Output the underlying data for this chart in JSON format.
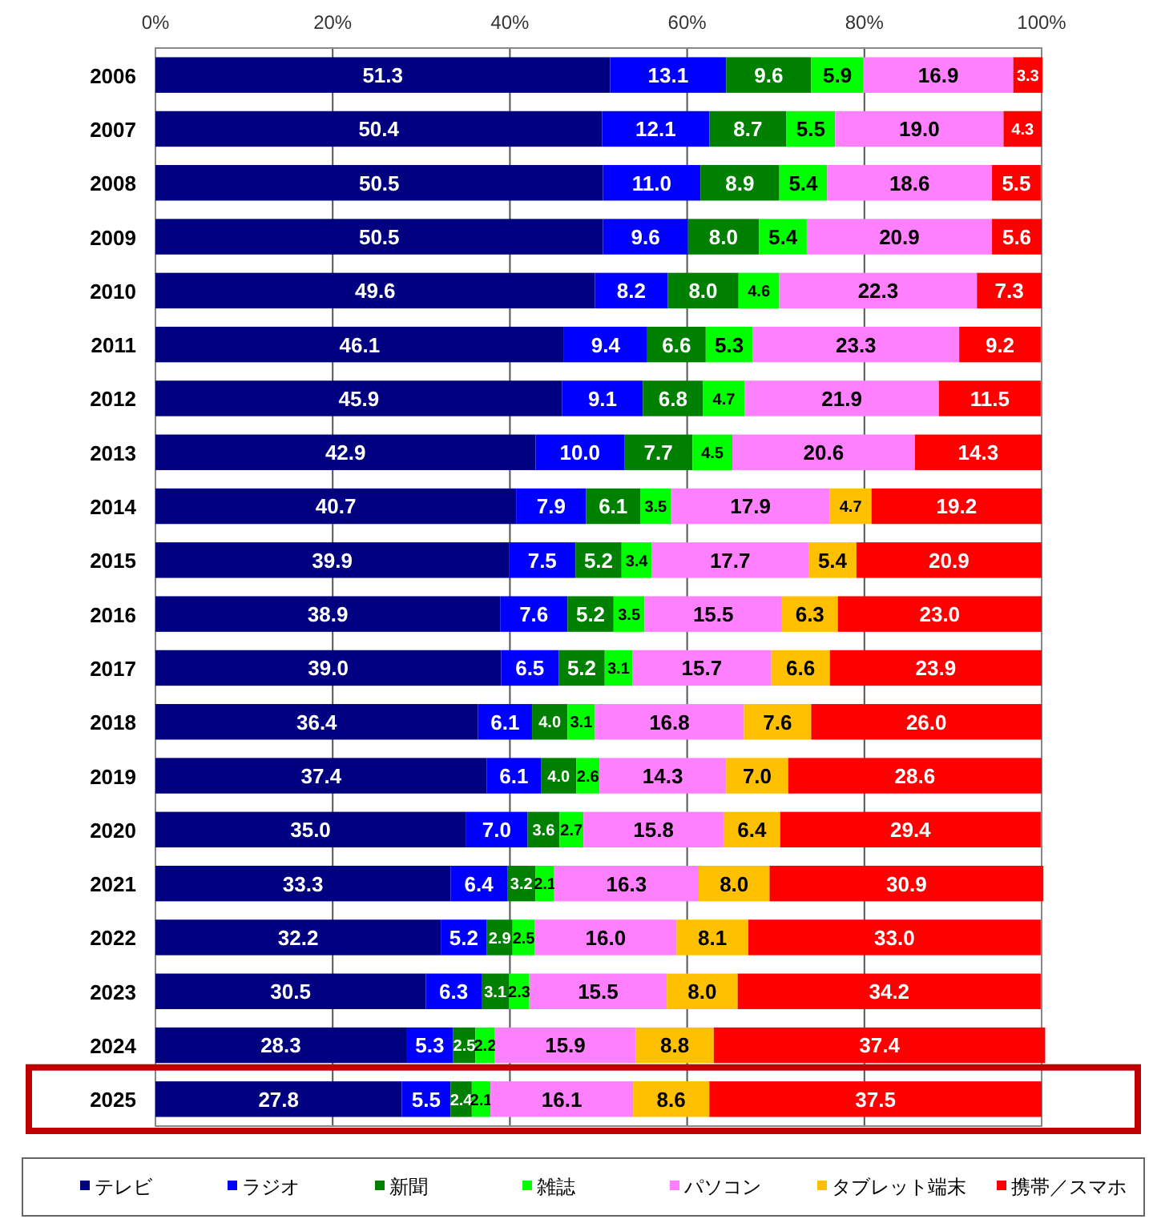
{
  "chart_data": {
    "type": "bar",
    "orientation": "horizontal",
    "stacked": true,
    "grid": "x",
    "legend": "bottom",
    "categories": [
      "2006",
      "2007",
      "2008",
      "2009",
      "2010",
      "2011",
      "2012",
      "2013",
      "2014",
      "2015",
      "2016",
      "2017",
      "2018",
      "2019",
      "2020",
      "2021",
      "2022",
      "2023",
      "2024",
      "2025"
    ],
    "xlim": [
      0,
      100
    ],
    "xticks": [
      {
        "value": 0,
        "label": "0%"
      },
      {
        "value": 20,
        "label": "20%"
      },
      {
        "value": 40,
        "label": "40%"
      },
      {
        "value": 60,
        "label": "60%"
      },
      {
        "value": 80,
        "label": "80%"
      },
      {
        "value": 100,
        "label": "100%"
      }
    ],
    "series": [
      {
        "name": "テレビ",
        "color": "#000080",
        "values": [
          51.3,
          50.4,
          50.5,
          50.5,
          49.6,
          46.1,
          45.9,
          42.9,
          40.7,
          39.9,
          38.9,
          39.0,
          36.4,
          37.4,
          35.0,
          33.3,
          32.2,
          30.5,
          28.3,
          27.8
        ],
        "value_labels": [
          "51.3",
          "50.4",
          "50.5",
          "50.5",
          "49.6",
          "46.1",
          "45.9",
          "42.9",
          "40.7",
          "39.9",
          "38.9",
          "39.0",
          "36.4",
          "37.4",
          "35.0",
          "33.3",
          "32.2",
          "30.5",
          "28.3",
          "27.8"
        ]
      },
      {
        "name": "ラジオ",
        "color": "#0000ff",
        "values": [
          13.1,
          12.1,
          11.0,
          9.6,
          8.2,
          9.4,
          9.1,
          10.0,
          7.9,
          7.5,
          7.6,
          6.5,
          6.1,
          6.1,
          7.0,
          6.4,
          5.2,
          6.3,
          5.3,
          5.5
        ],
        "value_labels": [
          "13.1",
          "12.1",
          "11.0",
          "9.6",
          "8.2",
          "9.4",
          "9.1",
          "10.0",
          "7.9",
          "7.5",
          "7.6",
          "6.5",
          "6.1",
          "6.1",
          "7.0",
          "6.4",
          "5.2",
          "6.3",
          "5.3",
          "5.5"
        ]
      },
      {
        "name": "新聞",
        "color": "#008000",
        "values": [
          9.6,
          8.7,
          8.9,
          8.0,
          8.0,
          6.6,
          6.8,
          7.7,
          6.1,
          5.2,
          5.2,
          5.2,
          4.0,
          4.0,
          3.6,
          3.2,
          2.9,
          3.1,
          2.5,
          2.4
        ],
        "value_labels": [
          "9.6",
          "8.7",
          "8.9",
          "8.0",
          "8.0",
          "6.6",
          "6.8",
          "7.7",
          "6.1",
          "5.2",
          "5.2",
          "5.2",
          "4.0",
          "4.0",
          "3.6",
          "3.2",
          "2.9",
          "3.1",
          "2.5",
          "2.4"
        ]
      },
      {
        "name": "雑誌",
        "color": "#00ff00",
        "values": [
          5.9,
          5.5,
          5.4,
          5.4,
          4.6,
          5.3,
          4.7,
          4.5,
          3.5,
          3.4,
          3.5,
          3.1,
          3.1,
          2.6,
          2.7,
          2.1,
          2.5,
          2.3,
          2.2,
          2.1
        ],
        "value_labels": [
          "5.9",
          "5.5",
          "5.4",
          "5.4",
          "4.6",
          "5.3",
          "4.7",
          "4.5",
          "3.5",
          "3.4",
          "3.5",
          "3.1",
          "3.1",
          "2.6",
          "2.7",
          "2.1",
          "2.5",
          "2.3",
          "2.2",
          "2.1"
        ]
      },
      {
        "name": "パソコン",
        "color": "#ff80ff",
        "values": [
          16.9,
          19.0,
          18.6,
          20.9,
          22.3,
          23.3,
          21.9,
          20.6,
          17.9,
          17.7,
          15.5,
          15.7,
          16.8,
          14.3,
          15.8,
          16.3,
          16.0,
          15.5,
          15.9,
          16.1
        ],
        "value_labels": [
          "16.9",
          "19.0",
          "18.6",
          "20.9",
          "22.3",
          "23.3",
          "21.9",
          "20.6",
          "17.9",
          "17.7",
          "15.5",
          "15.7",
          "16.8",
          "14.3",
          "15.8",
          "16.3",
          "16.0",
          "15.5",
          "15.9",
          "16.1"
        ]
      },
      {
        "name": "タブレット端末",
        "color": "#ffc000",
        "values": [
          null,
          null,
          null,
          null,
          null,
          null,
          null,
          null,
          4.7,
          5.4,
          6.3,
          6.6,
          7.6,
          7.0,
          6.4,
          8.0,
          8.1,
          8.0,
          8.8,
          8.6
        ],
        "value_labels": [
          null,
          null,
          null,
          null,
          null,
          null,
          null,
          null,
          "4.7",
          "5.4",
          "6.3",
          "6.6",
          "7.6",
          "7.0",
          "6.4",
          "8.0",
          "8.1",
          "8.0",
          "8.8",
          "8.6"
        ]
      },
      {
        "name": "携帯／スマホ",
        "color": "#ff0000",
        "values": [
          3.3,
          4.3,
          5.5,
          5.6,
          7.3,
          9.2,
          11.5,
          14.3,
          19.2,
          20.9,
          23.0,
          23.9,
          26.0,
          28.6,
          29.4,
          30.9,
          33.0,
          34.2,
          37.4,
          37.5
        ],
        "value_labels": [
          "3.3",
          "4.3",
          "5.5",
          "5.6",
          "7.3",
          "9.2",
          "11.5",
          "14.3",
          "19.2",
          "20.9",
          "23.0",
          "23.9",
          "26.0",
          "28.6",
          "29.4",
          "30.9",
          "33.0",
          "34.2",
          "37.4",
          "37.5"
        ]
      }
    ]
  }
}
